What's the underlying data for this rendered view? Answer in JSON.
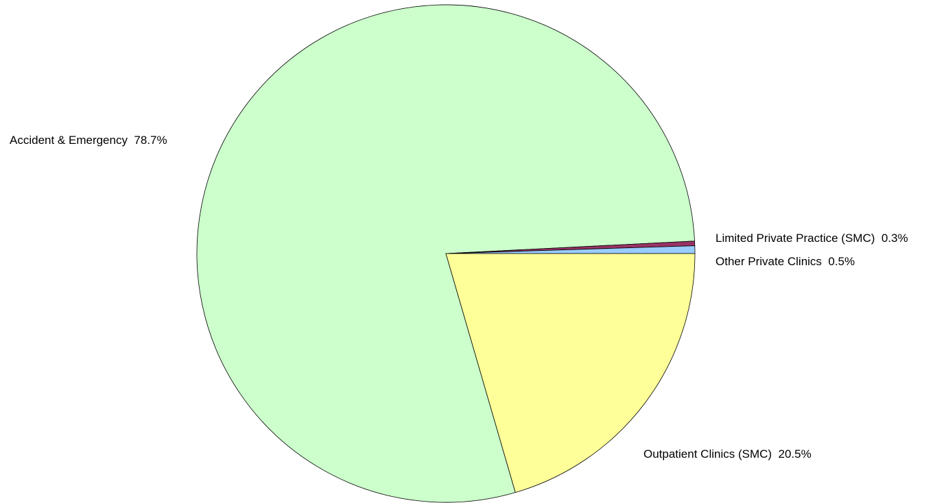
{
  "chart_data": {
    "type": "pie",
    "title": "",
    "slices": [
      {
        "label": "Accident & Emergency",
        "value": 78.7,
        "display": "78.7%",
        "color": "#CCFFCC"
      },
      {
        "label": "Limited Private Practice (SMC)",
        "value": 0.3,
        "display": "0.3%",
        "color": "#993366"
      },
      {
        "label": "Other Private Clinics",
        "value": 0.5,
        "display": "0.5%",
        "color": "#99CCFF"
      },
      {
        "label": "Outpatient Clinics (SMC)",
        "value": 20.5,
        "display": "20.5%",
        "color": "#FFFF99"
      }
    ],
    "legend": "none",
    "outline_color": "#000000"
  }
}
